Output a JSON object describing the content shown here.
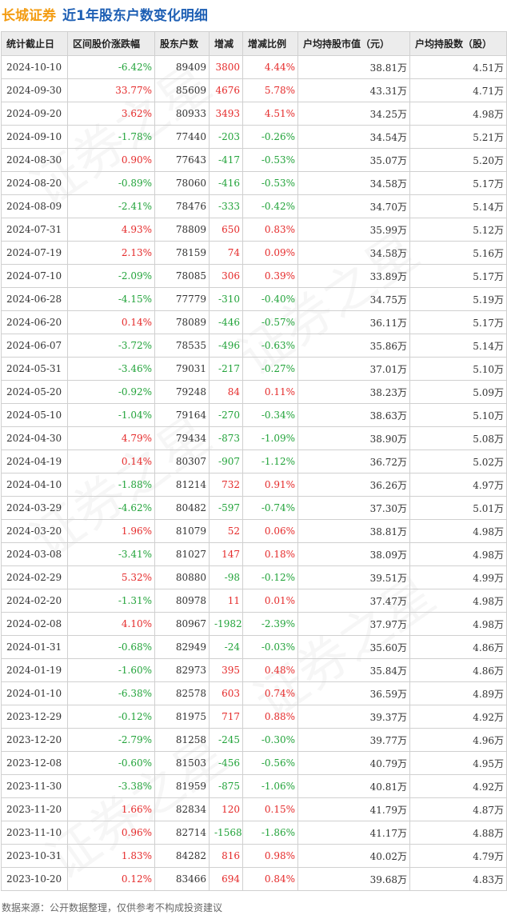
{
  "header": {
    "stock_name": "长城证券",
    "subtitle": "近1年股东户数变化明细"
  },
  "table": {
    "columns": [
      "统计截止日",
      "区间股价涨跌幅",
      "股东户数",
      "增减",
      "增减比例",
      "户均持股市值（元）",
      "户均持股数（股）"
    ],
    "rows": [
      [
        "2024-10-10",
        "-6.42%",
        "89409",
        "3800",
        "4.44%",
        "38.81万",
        "4.51万"
      ],
      [
        "2024-09-30",
        "33.77%",
        "85609",
        "4676",
        "5.78%",
        "43.31万",
        "4.71万"
      ],
      [
        "2024-09-20",
        "3.62%",
        "80933",
        "3493",
        "4.51%",
        "34.25万",
        "4.98万"
      ],
      [
        "2024-09-10",
        "-1.78%",
        "77440",
        "-203",
        "-0.26%",
        "34.54万",
        "5.21万"
      ],
      [
        "2024-08-30",
        "0.90%",
        "77643",
        "-417",
        "-0.53%",
        "35.07万",
        "5.20万"
      ],
      [
        "2024-08-20",
        "-0.89%",
        "78060",
        "-416",
        "-0.53%",
        "34.58万",
        "5.17万"
      ],
      [
        "2024-08-09",
        "-2.41%",
        "78476",
        "-333",
        "-0.42%",
        "34.70万",
        "5.14万"
      ],
      [
        "2024-07-31",
        "4.93%",
        "78809",
        "650",
        "0.83%",
        "35.99万",
        "5.12万"
      ],
      [
        "2024-07-19",
        "2.13%",
        "78159",
        "74",
        "0.09%",
        "34.58万",
        "5.16万"
      ],
      [
        "2024-07-10",
        "-2.09%",
        "78085",
        "306",
        "0.39%",
        "33.89万",
        "5.17万"
      ],
      [
        "2024-06-28",
        "-4.15%",
        "77779",
        "-310",
        "-0.40%",
        "34.75万",
        "5.19万"
      ],
      [
        "2024-06-20",
        "0.14%",
        "78089",
        "-446",
        "-0.57%",
        "36.11万",
        "5.17万"
      ],
      [
        "2024-06-07",
        "-3.72%",
        "78535",
        "-496",
        "-0.63%",
        "35.86万",
        "5.14万"
      ],
      [
        "2024-05-31",
        "-3.46%",
        "79031",
        "-217",
        "-0.27%",
        "37.01万",
        "5.10万"
      ],
      [
        "2024-05-20",
        "-0.92%",
        "79248",
        "84",
        "0.11%",
        "38.23万",
        "5.09万"
      ],
      [
        "2024-05-10",
        "-1.04%",
        "79164",
        "-270",
        "-0.34%",
        "38.63万",
        "5.10万"
      ],
      [
        "2024-04-30",
        "4.79%",
        "79434",
        "-873",
        "-1.09%",
        "38.90万",
        "5.08万"
      ],
      [
        "2024-04-19",
        "0.14%",
        "80307",
        "-907",
        "-1.12%",
        "36.72万",
        "5.02万"
      ],
      [
        "2024-04-10",
        "-1.88%",
        "81214",
        "732",
        "0.91%",
        "36.26万",
        "4.97万"
      ],
      [
        "2024-03-29",
        "-4.62%",
        "80482",
        "-597",
        "-0.74%",
        "37.30万",
        "5.01万"
      ],
      [
        "2024-03-20",
        "1.96%",
        "81079",
        "52",
        "0.06%",
        "38.81万",
        "4.98万"
      ],
      [
        "2024-03-08",
        "-3.41%",
        "81027",
        "147",
        "0.18%",
        "38.09万",
        "4.98万"
      ],
      [
        "2024-02-29",
        "5.32%",
        "80880",
        "-98",
        "-0.12%",
        "39.51万",
        "4.99万"
      ],
      [
        "2024-02-20",
        "-1.31%",
        "80978",
        "11",
        "0.01%",
        "37.47万",
        "4.98万"
      ],
      [
        "2024-02-08",
        "4.10%",
        "80967",
        "-1982",
        "-2.39%",
        "37.97万",
        "4.98万"
      ],
      [
        "2024-01-31",
        "-0.68%",
        "82949",
        "-24",
        "-0.03%",
        "35.60万",
        "4.86万"
      ],
      [
        "2024-01-19",
        "-1.60%",
        "82973",
        "395",
        "0.48%",
        "35.84万",
        "4.86万"
      ],
      [
        "2024-01-10",
        "-6.38%",
        "82578",
        "603",
        "0.74%",
        "36.59万",
        "4.89万"
      ],
      [
        "2023-12-29",
        "-0.12%",
        "81975",
        "717",
        "0.88%",
        "39.37万",
        "4.92万"
      ],
      [
        "2023-12-20",
        "-2.79%",
        "81258",
        "-245",
        "-0.30%",
        "39.77万",
        "4.96万"
      ],
      [
        "2023-12-08",
        "-0.60%",
        "81503",
        "-456",
        "-0.56%",
        "40.79万",
        "4.95万"
      ],
      [
        "2023-11-30",
        "-3.38%",
        "81959",
        "-875",
        "-1.06%",
        "40.81万",
        "4.92万"
      ],
      [
        "2023-11-20",
        "1.66%",
        "82834",
        "120",
        "0.15%",
        "41.79万",
        "4.87万"
      ],
      [
        "2023-11-10",
        "0.96%",
        "82714",
        "-1568",
        "-1.86%",
        "41.17万",
        "4.88万"
      ],
      [
        "2023-10-31",
        "1.83%",
        "84282",
        "816",
        "0.98%",
        "40.02万",
        "4.79万"
      ],
      [
        "2023-10-20",
        "0.12%",
        "83466",
        "694",
        "0.84%",
        "39.68万",
        "4.83万"
      ]
    ]
  },
  "footer": {
    "source": "数据来源：公开数据整理，仅供参考不构成投资建议"
  },
  "watermark": {
    "text": "证券之星"
  },
  "colors": {
    "title_orange": "#f39c12",
    "title_blue": "#1e5fb4",
    "positive_red": "#e52a2a",
    "negative_green": "#22a33a",
    "header_bg": "#ececec"
  }
}
